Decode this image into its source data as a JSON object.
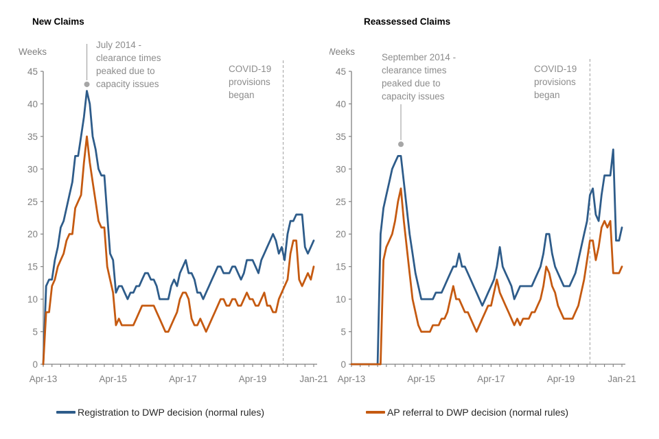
{
  "page": {
    "background": "#ffffff"
  },
  "colors": {
    "blue": "#2e5c8a",
    "orange": "#c55a11",
    "axis": "#808080",
    "tick_label": "#7f7f7f",
    "annotation_text": "#8c8c8c",
    "dashed": "#a6a6a6",
    "title": "#000000",
    "legend_text": "#262626"
  },
  "chart_data": [
    {
      "type": "line",
      "title": "New Claims",
      "ylabel": "Weeks",
      "ylim": [
        0,
        45
      ],
      "ytick_step": 5,
      "grid": false,
      "minor_tick_months": 3,
      "x_ticks": [
        {
          "label": "Apr-13",
          "month": 0
        },
        {
          "label": "Apr-15",
          "month": 24
        },
        {
          "label": "Apr-17",
          "month": 48
        },
        {
          "label": "Apr-19",
          "month": 72
        },
        {
          "label": "Jan-21",
          "month": 93
        }
      ],
      "annotation": {
        "lines": [
          "July 2014 -",
          "clearance times",
          "peaked due to",
          "capacity issues"
        ],
        "marker_month": 15,
        "marker_value": 43
      },
      "covid": {
        "lines": [
          "COVID-19",
          "provisions",
          "began"
        ],
        "month": 82.5
      },
      "legend": {
        "label": "Registration to DWP decision (normal rules)",
        "color": "#2e5c8a"
      },
      "series": [
        {
          "name": "Registration to DWP decision (normal rules)",
          "color": "#2e5c8a",
          "values": [
            0,
            12,
            13,
            13,
            16,
            18,
            21,
            22,
            24,
            26,
            28,
            32,
            32,
            35,
            38,
            42,
            40,
            35,
            33,
            30,
            29,
            29,
            23,
            17,
            16,
            11,
            12,
            12,
            11,
            10,
            11,
            11,
            12,
            12,
            13,
            14,
            14,
            13,
            13,
            12,
            10,
            10,
            10,
            10,
            12,
            13,
            12,
            14,
            15,
            16,
            14,
            14,
            13,
            11,
            11,
            10,
            11,
            12,
            13,
            14,
            15,
            15,
            14,
            14,
            14,
            15,
            15,
            14,
            13,
            14,
            16,
            16,
            16,
            15,
            14,
            16,
            17,
            18,
            19,
            20,
            19,
            17,
            18,
            16,
            20,
            22,
            22,
            23,
            23,
            23,
            18,
            17,
            18,
            19
          ]
        },
        {
          "name": "AP referral to DWP decision (normal rules)",
          "color": "#c55a11",
          "values": [
            0,
            8,
            8,
            12,
            13,
            15,
            16,
            17,
            19,
            20,
            20,
            24,
            25,
            26,
            31,
            35,
            31,
            28,
            25,
            22,
            21,
            21,
            15,
            13,
            11,
            6,
            7,
            6,
            6,
            6,
            6,
            6,
            7,
            8,
            9,
            9,
            9,
            9,
            9,
            8,
            7,
            6,
            5,
            5,
            6,
            7,
            8,
            10,
            11,
            11,
            10,
            7,
            6,
            6,
            7,
            6,
            5,
            6,
            7,
            8,
            9,
            10,
            10,
            9,
            9,
            10,
            10,
            9,
            9,
            10,
            11,
            10,
            10,
            9,
            9,
            10,
            11,
            9,
            9,
            8,
            8,
            10,
            11,
            12,
            13,
            17,
            19,
            19,
            13,
            12,
            13,
            14,
            13,
            15
          ]
        }
      ],
      "layout": {
        "axis_x": 63,
        "ann_text_x": 140,
        "ann_text_top": 70,
        "ann_line_top": 64,
        "covid_text_x": 333,
        "covid_text_top": 105,
        "covid_line_top": 88
      }
    },
    {
      "type": "line",
      "title": "Reassessed Claims",
      "ylabel": "Weeks",
      "ylim": [
        0,
        45
      ],
      "ytick_step": 5,
      "grid": false,
      "minor_tick_months": 3,
      "x_ticks": [
        {
          "label": "Apr-13",
          "month": 0
        },
        {
          "label": "Apr-15",
          "month": 24
        },
        {
          "label": "Apr-17",
          "month": 48
        },
        {
          "label": "Apr-19",
          "month": 72
        },
        {
          "label": "Jan-21",
          "month": 93
        }
      ],
      "annotation": {
        "lines": [
          "September 2014 -",
          "clearance times",
          "peaked due to",
          "capacity issues"
        ],
        "marker_month": 17,
        "marker_value": 33.8
      },
      "covid": {
        "lines": [
          "COVID-19",
          "provisions",
          "began"
        ],
        "month": 82
      },
      "legend": {
        "label": "AP referral to DWP decision (normal rules)",
        "color": "#c55a11"
      },
      "series": [
        {
          "name": "Registration to DWP decision (normal rules)",
          "color": "#2e5c8a",
          "values": [
            0,
            0,
            0,
            0,
            0,
            0,
            0,
            0,
            0,
            0,
            20,
            24,
            26,
            28,
            30,
            31,
            32,
            32,
            28,
            24,
            20,
            17,
            14,
            12,
            10,
            10,
            10,
            10,
            10,
            11,
            11,
            11,
            12,
            13,
            14,
            15,
            15,
            17,
            15,
            15,
            14,
            13,
            12,
            11,
            10,
            9,
            10,
            11,
            12,
            13,
            15,
            18,
            15,
            14,
            13,
            12,
            10,
            11,
            12,
            12,
            12,
            12,
            12,
            13,
            14,
            15,
            17,
            20,
            20,
            17,
            15,
            14,
            13,
            12,
            12,
            12,
            13,
            14,
            16,
            18,
            20,
            22,
            26,
            27,
            23,
            22,
            26,
            29,
            29,
            29,
            33,
            19,
            19,
            21
          ]
        },
        {
          "name": "AP referral to DWP decision (normal rules)",
          "color": "#c55a11",
          "values": [
            0,
            0,
            0,
            0,
            0,
            0,
            0,
            0,
            0,
            0,
            0,
            16,
            18,
            19,
            20,
            22,
            25,
            27,
            22,
            18,
            14,
            10,
            8,
            6,
            5,
            5,
            5,
            5,
            6,
            6,
            6,
            7,
            7,
            8,
            10,
            12,
            10,
            10,
            9,
            8,
            8,
            7,
            6,
            5,
            6,
            7,
            8,
            9,
            9,
            11,
            13,
            11,
            10,
            9,
            8,
            7,
            6,
            7,
            6,
            7,
            7,
            7,
            8,
            8,
            9,
            10,
            12,
            15,
            14,
            12,
            11,
            9,
            8,
            7,
            7,
            7,
            7,
            8,
            9,
            11,
            13,
            16,
            19,
            19,
            16,
            18,
            21,
            22,
            21,
            22,
            14,
            14,
            14,
            15
          ]
        }
      ],
      "layout": {
        "axis_x": 32,
        "ann_text_x": 76,
        "ann_text_top": 88,
        "ann_line_top": 152,
        "covid_text_x": 298,
        "covid_text_top": 105,
        "covid_line_top": 86
      }
    }
  ]
}
